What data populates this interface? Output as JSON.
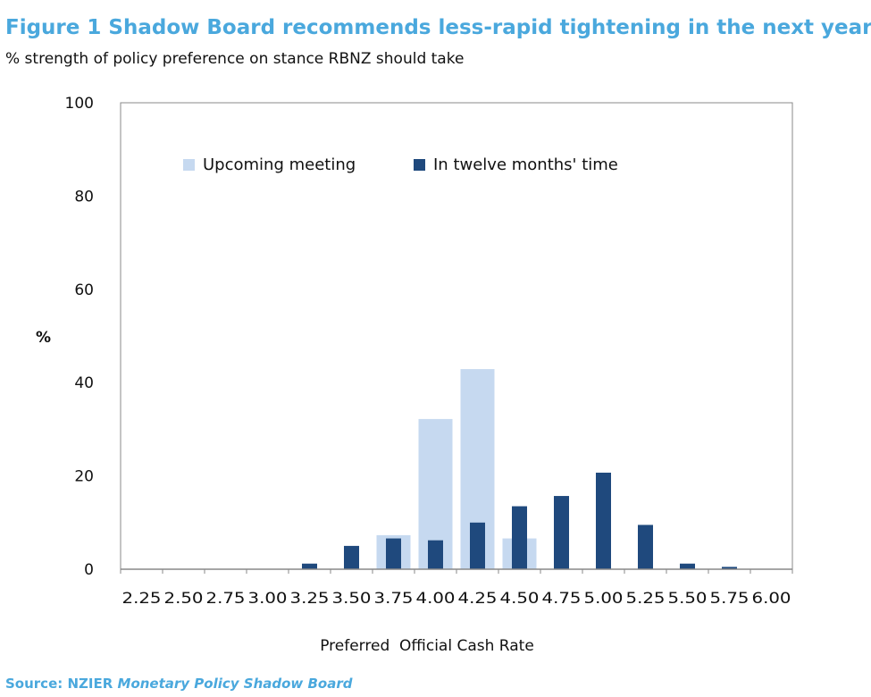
{
  "title": "Figure 1 Shadow Board recommends less-rapid tightening in the next year",
  "subtitle": "% strength of policy preference on stance RBNZ should take",
  "source_label": "Source: NZIER ",
  "source_name": "Monetary Policy Shadow Board",
  "chart_data": {
    "type": "bar",
    "title": "Figure 1 Shadow Board recommends less-rapid tightening in the next year",
    "subtitle": "% strength of policy preference on stance RBNZ should take",
    "xlabel": "Preferred  Official Cash Rate",
    "ylabel": "%",
    "ylim": [
      0,
      100
    ],
    "yticks": [
      0,
      20,
      40,
      60,
      80,
      100
    ],
    "grid": false,
    "legend_position": "top",
    "categories": [
      "2.25",
      "2.50",
      "2.75",
      "3.00",
      "3.25",
      "3.50",
      "3.75",
      "4.00",
      "4.25",
      "4.50",
      "4.75",
      "5.00",
      "5.25",
      "5.50",
      "5.75",
      "6.00"
    ],
    "series": [
      {
        "name": "Upcoming meeting",
        "color": "#c6d9f0",
        "values": [
          0,
          0,
          0,
          0,
          0,
          0,
          7.3,
          32.2,
          42.9,
          6.6,
          0,
          0,
          0,
          0,
          0,
          0
        ]
      },
      {
        "name": "In twelve months' time",
        "color": "#1f497d",
        "values": [
          0,
          0,
          0,
          0,
          1.2,
          5.0,
          6.6,
          6.2,
          10.0,
          13.5,
          15.7,
          20.7,
          9.5,
          1.2,
          0.5,
          0
        ]
      }
    ]
  }
}
